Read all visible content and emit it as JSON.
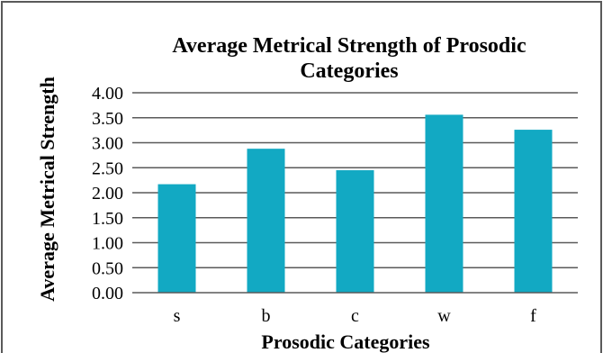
{
  "chart_data": {
    "type": "bar",
    "title": "Average Metrical Strength of Prosodic Categories",
    "title_lines": [
      "Average Metrical Strength of Prosodic",
      "Categories"
    ],
    "xlabel": "Prosodic Categories",
    "ylabel": "Average Metrical Strength",
    "categories": [
      "s",
      "b",
      "c",
      "w",
      "f"
    ],
    "values": [
      2.17,
      2.88,
      2.45,
      3.56,
      3.26
    ],
    "ylim": [
      0,
      4
    ],
    "y_ticks": [
      "0.00",
      "0.50",
      "1.00",
      "1.50",
      "2.00",
      "2.50",
      "3.00",
      "3.50",
      "4.00"
    ],
    "grid": true,
    "legend": "none",
    "bar_color": "#12a9c3"
  }
}
